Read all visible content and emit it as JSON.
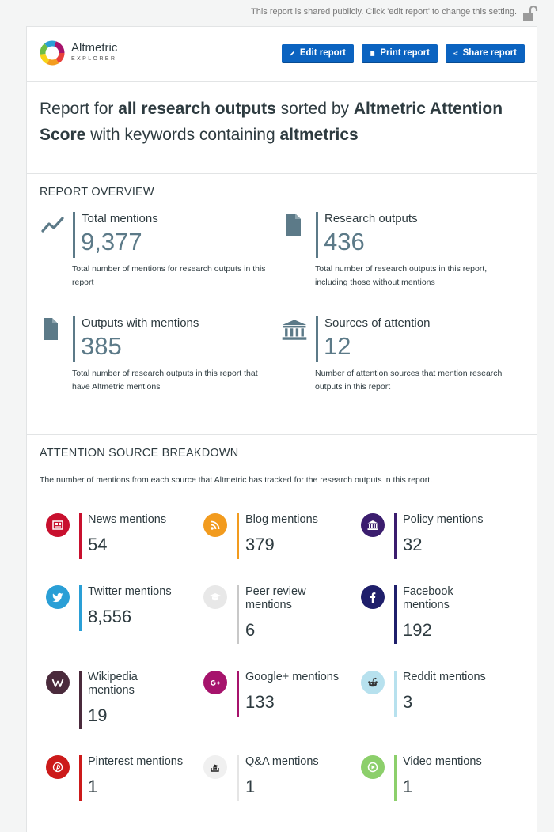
{
  "share_notice": "This report is shared publicly. Click 'edit report' to change this setting.",
  "brand": {
    "name": "Altmetric",
    "sub": "EXPLORER"
  },
  "buttons": {
    "edit": "Edit report",
    "print": "Print report",
    "share": "Share report"
  },
  "title": {
    "p1": "Report for ",
    "b1": "all research outputs",
    "p2": " sorted by ",
    "b2": "Altmetric Attention Score",
    "p3": " with keywords containing ",
    "b3": "altmetrics"
  },
  "overview": {
    "heading": "REPORT OVERVIEW",
    "items": [
      {
        "label": "Total mentions",
        "value": "9,377",
        "desc": "Total number of mentions for research outputs in this report",
        "icon": "trend-line-icon"
      },
      {
        "label": "Research outputs",
        "value": "436",
        "desc": "Total number of research outputs in this report, including those without mentions",
        "icon": "document-icon"
      },
      {
        "label": "Outputs with mentions",
        "value": "385",
        "desc": "Total number of research outputs in this report that have Altmetric mentions",
        "icon": "document-icon"
      },
      {
        "label": "Sources of attention",
        "value": "12",
        "desc": "Number of attention sources that mention research outputs in this report",
        "icon": "institution-icon"
      }
    ]
  },
  "breakdown": {
    "heading": "ATTENTION SOURCE BREAKDOWN",
    "desc": "The number of mentions from each source that Altmetric has tracked for the research outputs in this report.",
    "sources": [
      {
        "label": "News mentions",
        "value": "54",
        "color": "#c8102e",
        "icon": "news-icon"
      },
      {
        "label": "Blog mentions",
        "value": "379",
        "color": "#f29b1e",
        "icon": "rss-icon"
      },
      {
        "label": "Policy mentions",
        "value": "32",
        "color": "#3b1d6e",
        "icon": "policy-icon"
      },
      {
        "label": "Twitter mentions",
        "value": "8,556",
        "color": "#2a9fd6",
        "icon": "twitter-icon"
      },
      {
        "label": "Peer review mentions",
        "value": "6",
        "color": "#c8c8c8",
        "icon": "peer-review-icon"
      },
      {
        "label": "Facebook mentions",
        "value": "192",
        "color": "#1f1f6b",
        "icon": "facebook-icon"
      },
      {
        "label": "Wikipedia mentions",
        "value": "19",
        "color": "#4a2a3c",
        "icon": "wikipedia-icon"
      },
      {
        "label": "Google+ mentions",
        "value": "133",
        "color": "#a6136c",
        "icon": "google-plus-icon"
      },
      {
        "label": "Reddit mentions",
        "value": "3",
        "color": "#b7e1ee",
        "icon": "reddit-icon"
      },
      {
        "label": "Pinterest mentions",
        "value": "1",
        "color": "#cc1a1a",
        "icon": "pinterest-icon"
      },
      {
        "label": "Q&A mentions",
        "value": "1",
        "color": "#e5e5e5",
        "icon": "stack-exchange-icon"
      },
      {
        "label": "Video mentions",
        "value": "1",
        "color": "#8ccf6b",
        "icon": "video-icon"
      }
    ]
  }
}
